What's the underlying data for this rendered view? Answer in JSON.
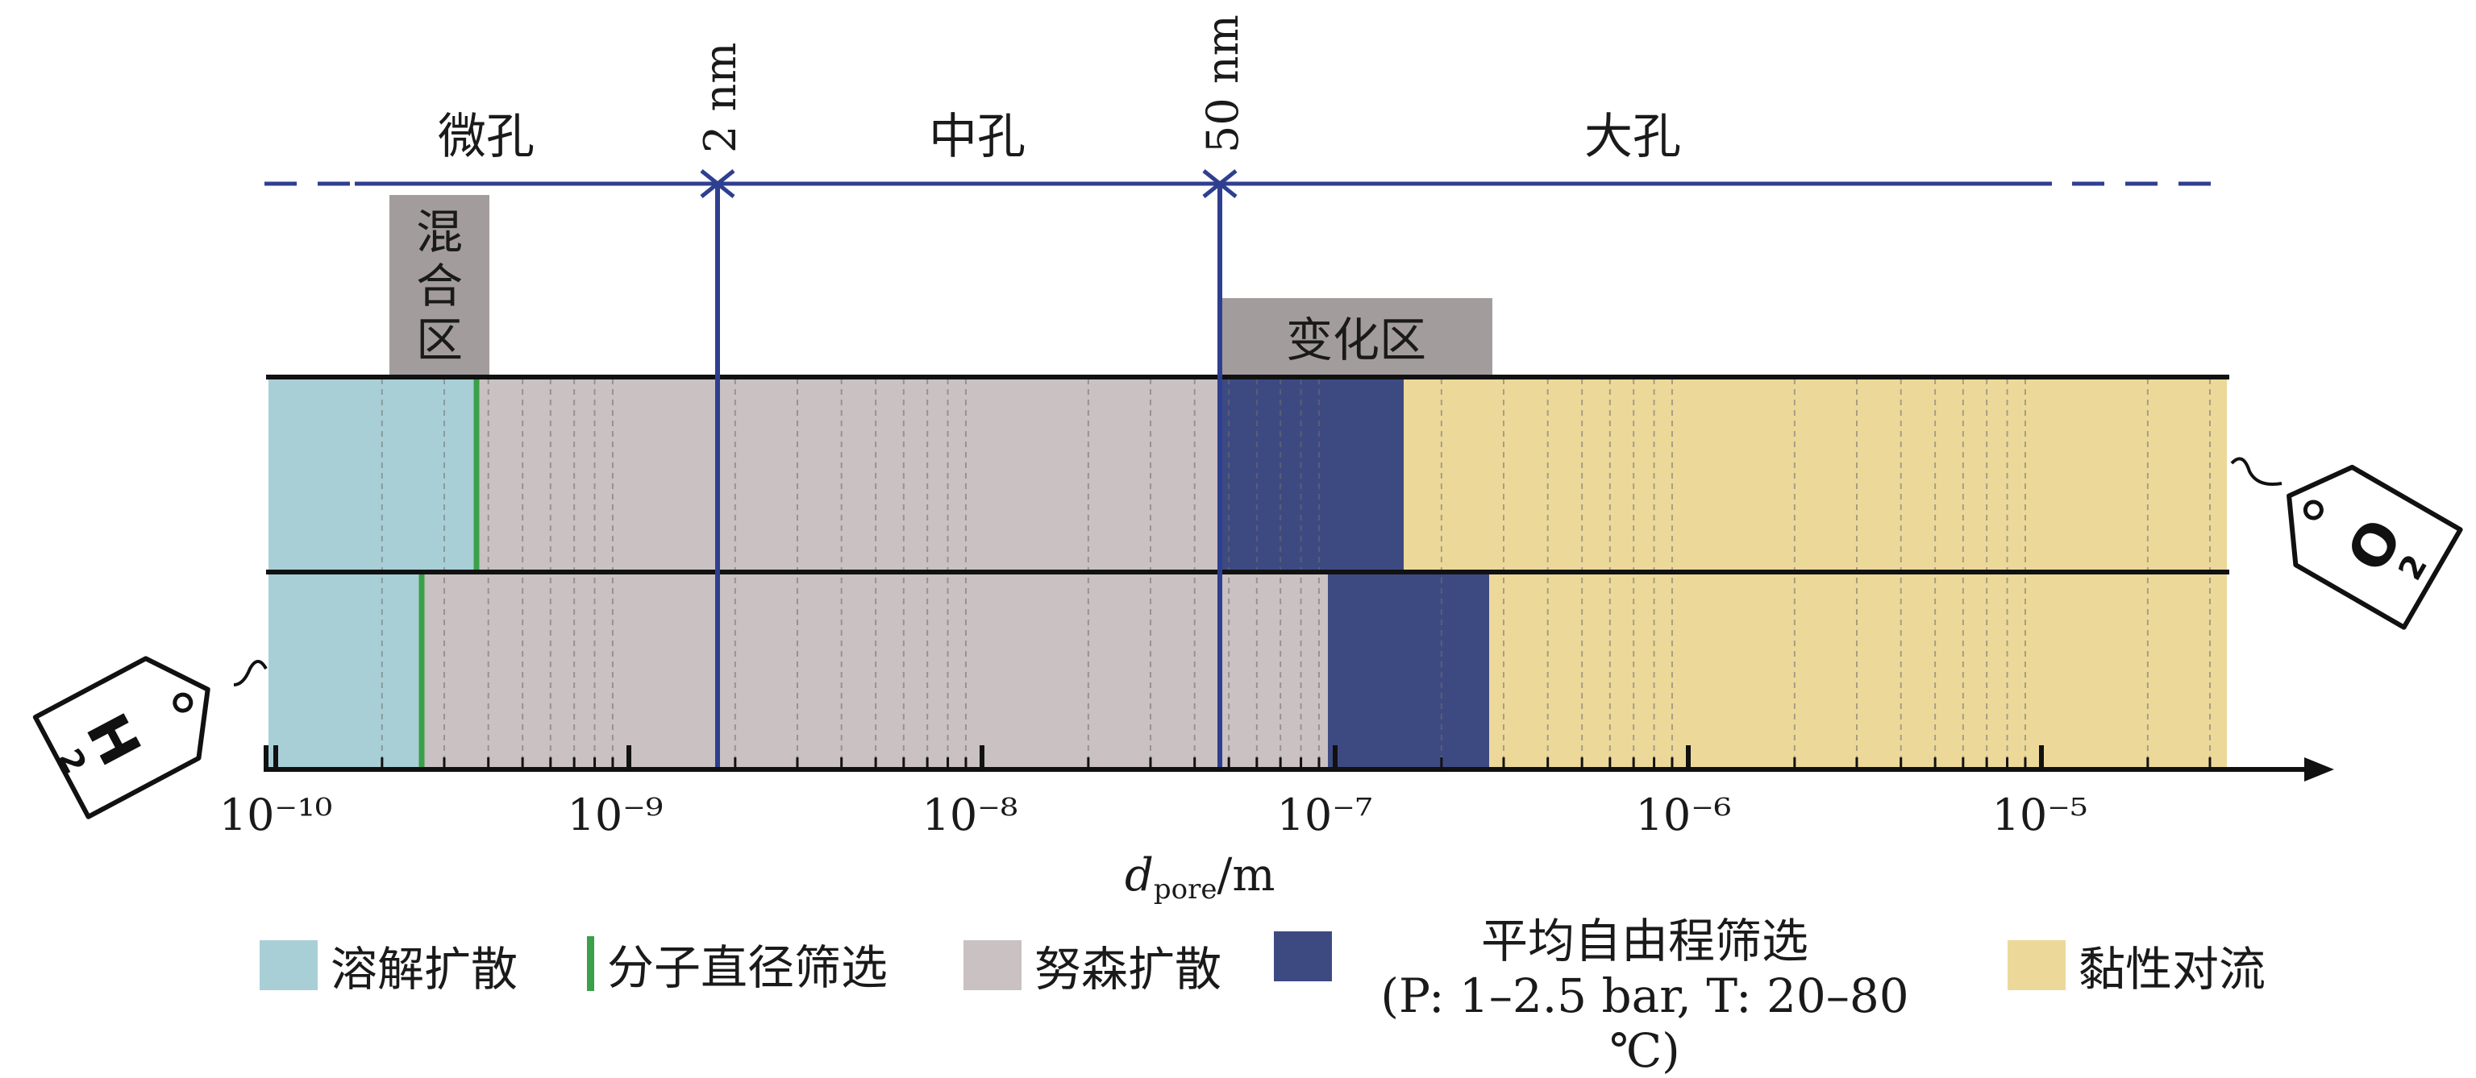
{
  "axis": {
    "tick_labels": [
      "10⁻¹⁰",
      "10⁻⁹",
      "10⁻⁸",
      "10⁻⁷",
      "10⁻⁶",
      "10⁻⁵"
    ],
    "xlabel_main": "d",
    "xlabel_sub": "pore",
    "xlabel_unit": "/m"
  },
  "boundaries": {
    "b1_label": "2 nm",
    "b2_label": "50 nm"
  },
  "regions": {
    "micro": "微孔",
    "meso": "中孔",
    "macro": "大孔"
  },
  "zones": {
    "mixed_line1": "混",
    "mixed_line2": "合",
    "mixed_line3": "区",
    "transition": "变化区"
  },
  "tags": {
    "h2_label": "H",
    "h2_sub": "2",
    "o2_label": "O",
    "o2_sub": "2"
  },
  "legend": {
    "solution": "溶解扩散",
    "sieving": "分子直径筛选",
    "knudsen": "努森扩散",
    "mfp_line1": "平均自由程筛选",
    "mfp_line2": "(P: 1–2.5 bar, T: 20–80 ℃)",
    "viscous": "黏性对流"
  },
  "colors": {
    "solution": "#a9cfd6",
    "sieving": "#3aa04a",
    "knudsen": "#c9c1c2",
    "mfp": "#3d4a82",
    "viscous": "#ecd99a",
    "zone_gray": "#a39c9d",
    "boundary": "#2f3f8f"
  }
}
